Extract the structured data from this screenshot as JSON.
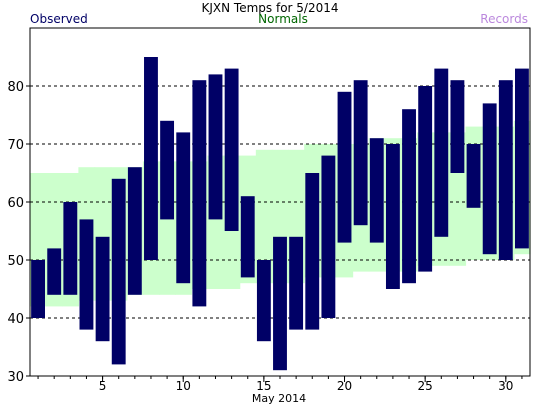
{
  "chart_data": {
    "type": "bar",
    "title": "KJXN Temps for 5/2014",
    "xlabel": "May 2014",
    "ylabel": "",
    "legend": [
      {
        "label": "Observed",
        "color": "#000066"
      },
      {
        "label": "Normals",
        "color": "#006600"
      },
      {
        "label": "Records",
        "color": "#bb88dd"
      }
    ],
    "x_range": [
      0.5,
      31.5
    ],
    "ylim": [
      30,
      90
    ],
    "y_ticks": [
      30,
      40,
      50,
      60,
      70,
      80
    ],
    "x_ticks": [
      5,
      10,
      15,
      20,
      25,
      30
    ],
    "gridlines_y": [
      40,
      50,
      60,
      70,
      80
    ],
    "days": [
      1,
      2,
      3,
      4,
      5,
      6,
      7,
      8,
      9,
      10,
      11,
      12,
      13,
      14,
      15,
      16,
      17,
      18,
      19,
      20,
      21,
      22,
      23,
      24,
      25,
      26,
      27,
      28,
      29,
      30,
      31
    ],
    "series": [
      {
        "name": "Observed",
        "color": "#000066",
        "high": [
          50,
          52,
          60,
          57,
          54,
          64,
          66,
          85,
          74,
          72,
          81,
          82,
          83,
          61,
          50,
          54,
          54,
          65,
          68,
          79,
          81,
          71,
          70,
          76,
          80,
          83,
          81,
          70,
          77,
          81,
          83
        ],
        "low": [
          40,
          44,
          44,
          38,
          36,
          32,
          44,
          50,
          57,
          46,
          42,
          57,
          55,
          47,
          36,
          31,
          38,
          38,
          40,
          53,
          56,
          53,
          45,
          46,
          48,
          54,
          65,
          59,
          51,
          50,
          52
        ]
      },
      {
        "name": "Normals",
        "color": "#ccffcc",
        "high": [
          65,
          65,
          65,
          66,
          66,
          66,
          66,
          67,
          67,
          67,
          67,
          68,
          68,
          68,
          69,
          69,
          69,
          70,
          70,
          70,
          70,
          71,
          71,
          71,
          72,
          72,
          72,
          73,
          73,
          73,
          74
        ],
        "low": [
          42,
          42,
          42,
          43,
          43,
          43,
          44,
          44,
          44,
          44,
          45,
          45,
          45,
          46,
          46,
          46,
          46,
          47,
          47,
          47,
          48,
          48,
          48,
          48,
          49,
          49,
          49,
          50,
          50,
          50,
          51
        ]
      }
    ]
  }
}
